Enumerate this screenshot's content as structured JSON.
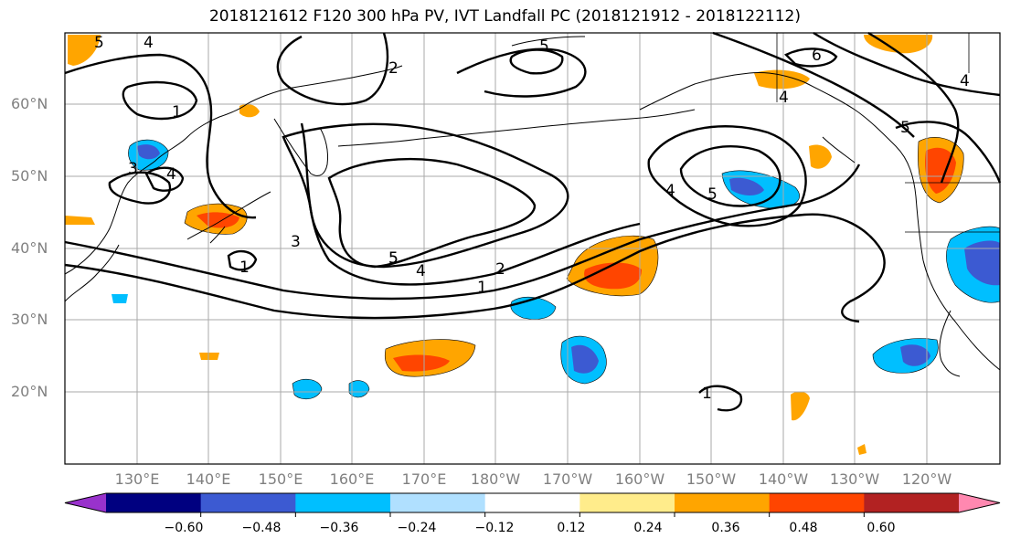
{
  "title": "2018121612 F120 300 hPa PV, IVT Landfall PC (2018121912 - 2018122112)",
  "lat_labels": [
    "60°N",
    "50°N",
    "40°N",
    "30°N",
    "20°N"
  ],
  "lon_labels": [
    "130°E",
    "140°E",
    "150°E",
    "160°E",
    "170°E",
    "180°W",
    "170°W",
    "160°W",
    "150°W",
    "140°W",
    "130°W",
    "120°W"
  ],
  "contour_labels": [
    "5",
    "4",
    "2",
    "5",
    "6",
    "4",
    "1",
    "3",
    "4",
    "4",
    "5",
    "5",
    "4",
    "5",
    "3",
    "5",
    "4",
    "2",
    "1",
    "1",
    "1"
  ],
  "colorbar": {
    "colors": [
      "#9932cc",
      "#000080",
      "#3c5ad2",
      "#00bfff",
      "#b0e0ff",
      "#ffffff",
      "#ffec8b",
      "#ffa500",
      "#ff4500",
      "#b22222",
      "#ff88b0"
    ],
    "tick_labels": [
      "−0.60",
      "−0.48",
      "−0.36",
      "−0.24",
      "−0.12",
      "0.12",
      "0.24",
      "0.36",
      "0.48",
      "0.60"
    ]
  }
}
